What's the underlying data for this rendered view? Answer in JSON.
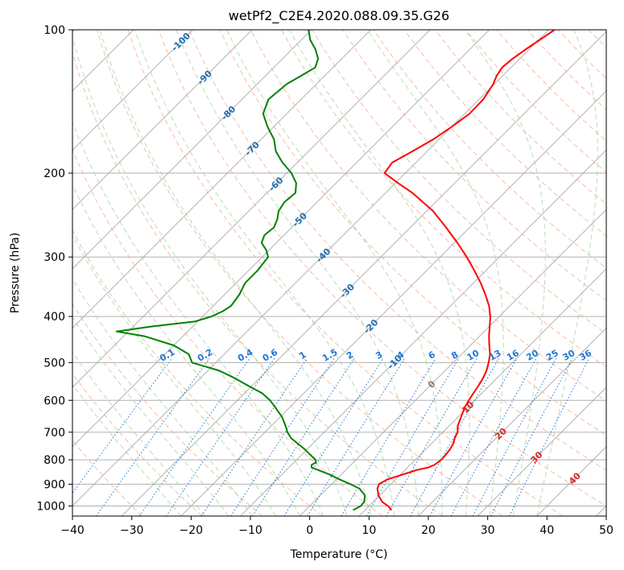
{
  "chart_data": {
    "type": "skew-t",
    "title": "wetPf2_C2E4.2020.088.09.35.G26",
    "xlabel": "Temperature (°C)",
    "ylabel": "Pressure (hPa)",
    "xlim": [
      -40,
      50
    ],
    "ylim": [
      1050,
      100
    ],
    "x_ticks": [
      "−40",
      "−30",
      "−20",
      "−10",
      "0",
      "10",
      "20",
      "30",
      "40",
      "50"
    ],
    "x_tick_values": [
      -40,
      -30,
      -20,
      -10,
      0,
      10,
      20,
      30,
      40,
      50
    ],
    "y_ticks": [
      "100",
      "200",
      "300",
      "400",
      "500",
      "600",
      "700",
      "800",
      "900",
      "1000"
    ],
    "y_tick_values": [
      100,
      200,
      300,
      400,
      500,
      600,
      700,
      800,
      900,
      1000
    ],
    "grid": true,
    "colors": {
      "temperature": "#ff0000",
      "dewpoint": "#008000",
      "isotherm": "#a0a0a0",
      "isobar": "#b0b0b0",
      "dry_adiabat": "#f4a58a",
      "moist_adiabat": "#9fd19f",
      "mixing_ratio": "#1f77d4",
      "isotherm_label": "#1f6fb0",
      "warm_isotherm_label": "#d62728"
    },
    "series": [
      {
        "key": "temperature",
        "pressure": [
          1020,
          1000,
          980,
          950,
          920,
          900,
          880,
          860,
          840,
          830,
          820,
          800,
          780,
          760,
          740,
          720,
          700,
          680,
          650,
          620,
          600,
          580,
          560,
          540,
          520,
          500,
          480,
          460,
          440,
          420,
          400,
          380,
          360,
          340,
          320,
          300,
          280,
          260,
          240,
          220,
          210,
          200,
          190,
          180,
          170,
          160,
          150,
          140,
          130,
          125,
          120,
          115,
          110,
          105,
          100
        ],
        "temp": [
          14.5,
          13.2,
          11.5,
          9.8,
          8.5,
          8.0,
          8.6,
          10.3,
          12.0,
          13.5,
          14.1,
          14.4,
          14.3,
          14.1,
          13.7,
          13.0,
          12.5,
          11.5,
          10.5,
          9.5,
          9.0,
          8.6,
          8.2,
          7.7,
          7.0,
          6.0,
          4.8,
          3.2,
          1.6,
          0.1,
          -1.5,
          -3.5,
          -6.0,
          -8.8,
          -12.0,
          -15.5,
          -19.5,
          -24.0,
          -29.0,
          -35.5,
          -39.5,
          -43.5,
          -44.0,
          -42.5,
          -41.0,
          -40.0,
          -39.2,
          -39.3,
          -40.2,
          -41.0,
          -41.5,
          -41.2,
          -40.6,
          -39.8,
          -39.0
        ]
      },
      {
        "key": "dewpoint",
        "pressure": [
          1020,
          1000,
          980,
          950,
          920,
          900,
          880,
          860,
          840,
          830,
          820,
          810,
          800,
          780,
          760,
          740,
          720,
          700,
          680,
          650,
          620,
          600,
          580,
          560,
          540,
          520,
          500,
          480,
          460,
          440,
          430,
          420,
          410,
          400,
          390,
          380,
          360,
          340,
          320,
          300,
          290,
          280,
          270,
          260,
          250,
          240,
          230,
          220,
          210,
          200,
          190,
          180,
          170,
          160,
          150,
          140,
          130,
          125,
          120,
          115,
          110,
          105,
          100
        ],
        "temp": [
          8.0,
          8.6,
          8.5,
          7.5,
          5.5,
          3.2,
          0.6,
          -1.8,
          -4.7,
          -6.2,
          -6.6,
          -6.3,
          -6.8,
          -8.6,
          -10.4,
          -12.5,
          -14.6,
          -16.2,
          -17.5,
          -19.7,
          -22.5,
          -24.5,
          -27.0,
          -30.5,
          -34.0,
          -38.0,
          -44.0,
          -46.0,
          -50.0,
          -56.5,
          -62.0,
          -57.0,
          -50.5,
          -48.5,
          -47.5,
          -47.0,
          -47.5,
          -48.5,
          -48.5,
          -49.0,
          -50.5,
          -52.5,
          -53.3,
          -53.0,
          -53.8,
          -55.0,
          -55.5,
          -55.2,
          -56.7,
          -59.2,
          -62.5,
          -65.5,
          -67.8,
          -71.0,
          -74.0,
          -75.5,
          -75.0,
          -74.0,
          -73.0,
          -74.0,
          -76.0,
          -78.5,
          -80.5
        ]
      }
    ],
    "isotherm_labels": [
      "-100",
      "-90",
      "-80",
      "-70",
      "-60",
      "-50",
      "-40",
      "-30",
      "-20",
      "-10"
    ],
    "isotherm_label_values": [
      -100,
      -90,
      -80,
      -70,
      -60,
      -50,
      -40,
      -30,
      -20,
      -10
    ],
    "zero_isotherm_label": "0",
    "warm_isotherm_labels": [
      "10",
      "20",
      "30",
      "40"
    ],
    "warm_isotherm_label_values": [
      10,
      20,
      30,
      40
    ],
    "mixing_ratio_labels": [
      "0.1",
      "0.2",
      "0.4",
      "0.6",
      "1",
      "1.5",
      "2",
      "3",
      "4",
      "6",
      "8",
      "10",
      "13",
      "16",
      "20",
      "25",
      "30",
      "36"
    ],
    "mixing_ratio_values": [
      0.1,
      0.2,
      0.4,
      0.6,
      1,
      1.5,
      2,
      3,
      4,
      6,
      8,
      10,
      13,
      16,
      20,
      25,
      30,
      36
    ]
  }
}
